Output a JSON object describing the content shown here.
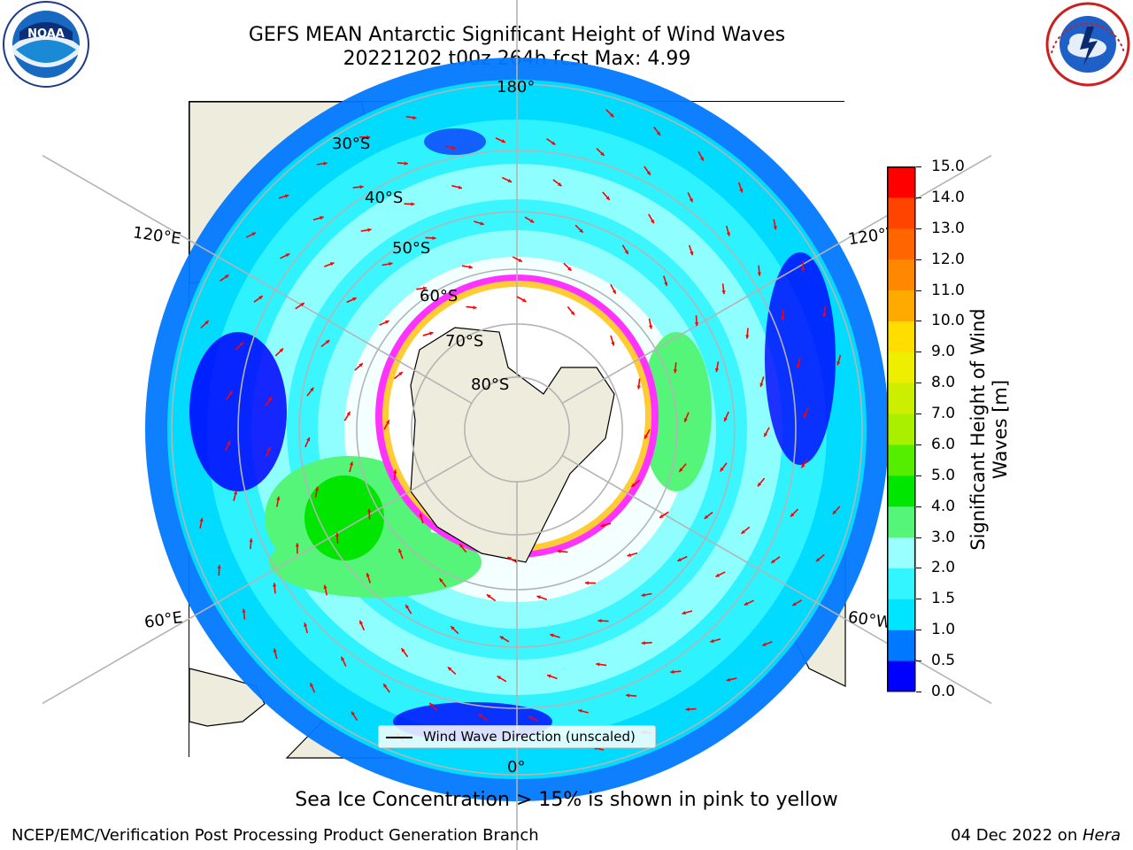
{
  "header": {
    "title_line1": "GEFS MEAN Antarctic Significant Height of Wind Waves",
    "title_line2": "20221202 t00z 264h fcst   Max: 4.99"
  },
  "logos": {
    "noaa_text": "NOAA",
    "noaa_ring_text": "NATIONAL OCEANIC AND ATMOSPHERIC ADMINISTRATION · U.S. DEPARTMENT OF COMMERCE",
    "nws_ring_text": "NATIONAL WEATHER SERVICE"
  },
  "map": {
    "projection": "south-polar-stereographic",
    "longitude_labels": {
      "top": "180°",
      "bottom": "0°",
      "upper_left": "120°E",
      "upper_right": "120°W",
      "lower_left": "60°E",
      "lower_right": "60°W"
    },
    "latitude_labels": [
      "30°S",
      "40°S",
      "50°S",
      "60°S",
      "70°S",
      "80°S"
    ],
    "legend_label": "Wind Wave Direction (unscaled)",
    "colors": {
      "land": "#eeecdc",
      "coastline": "#000000",
      "graticule": "#b4b4b4",
      "arrow": "#ff0000",
      "sea_ice_low": "#ff33ff",
      "sea_ice_high": "#ffcc33"
    }
  },
  "colorbar": {
    "label": "Significant Height of Wind Waves [m]",
    "ticks": [
      "0.0",
      "0.5",
      "1.0",
      "1.5",
      "2.0",
      "3.0",
      "4.0",
      "5.0",
      "6.0",
      "7.0",
      "8.0",
      "9.0",
      "10.0",
      "11.0",
      "12.0",
      "13.0",
      "14.0",
      "15.0"
    ],
    "colors": [
      "#0000ff",
      "#0078ff",
      "#00e5ff",
      "#33f5ff",
      "#99ffff",
      "#55f57a",
      "#00e600",
      "#55ee00",
      "#aaee00",
      "#ccee00",
      "#eeee00",
      "#ffdd00",
      "#ffaa00",
      "#ff8800",
      "#ff6600",
      "#ff4400",
      "#ff0000"
    ]
  },
  "footer": {
    "sea_ice_note": "Sea Ice Concentration > 15% is shown in pink to yellow",
    "branch": "NCEP/EMC/Verification Post Processing Product Generation Branch",
    "date": "04 Dec 2022 on ",
    "machine": "Hera"
  }
}
